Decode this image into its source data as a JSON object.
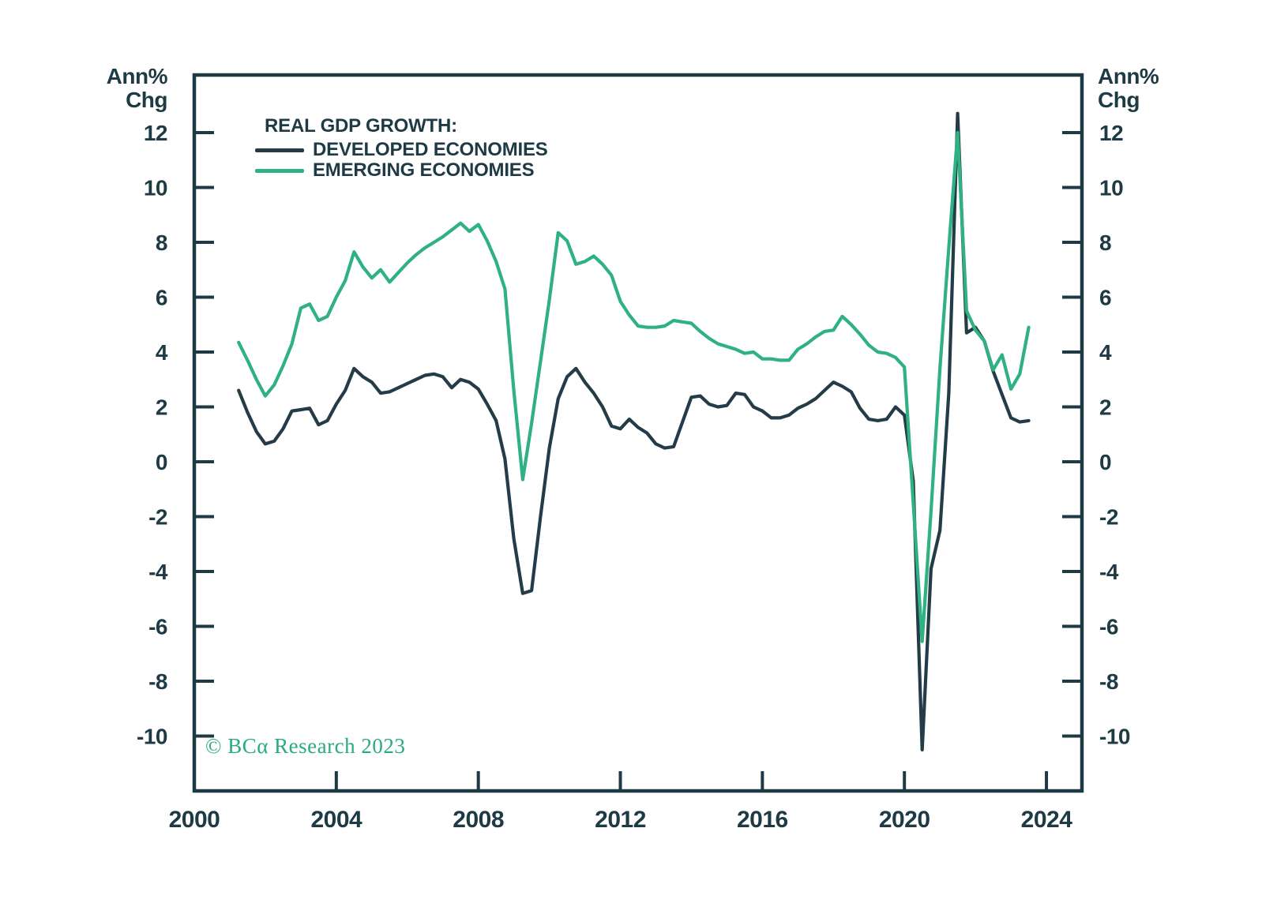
{
  "axis_units": {
    "line1": "Ann%",
    "line2": "Chg"
  },
  "legend": {
    "title": "REAL GDP GROWTH:",
    "items": [
      {
        "label": "DEVELOPED ECONOMIES",
        "color": "#243c48"
      },
      {
        "label": "EMERGING ECONOMIES",
        "color": "#2fb183"
      }
    ]
  },
  "copyright": "© BCα Research 2023",
  "colors": {
    "axis": "#1d3a45",
    "tick_label": "#1d3a45",
    "developed": "#243c48",
    "emerging": "#2fb183",
    "copyright_green": "#2aab7d",
    "background": "#ffffff"
  },
  "chart_data": {
    "type": "line",
    "title": "REAL GDP GROWTH:",
    "xlabel": "",
    "ylabel": "Ann% Chg",
    "grid": false,
    "legend_position": "top-left",
    "x_axis": {
      "range": [
        2000,
        2025
      ],
      "tick_values": [
        2000,
        2004,
        2008,
        2012,
        2016,
        2020,
        2024
      ],
      "tick_labels": [
        "2000",
        "2004",
        "2008",
        "2012",
        "2016",
        "2020",
        "2024"
      ]
    },
    "y_axis": {
      "range": [
        -12,
        14.1
      ],
      "tick_values": [
        12,
        10,
        8,
        6,
        4,
        2,
        0,
        -2,
        -4,
        -6,
        -8,
        -10
      ],
      "unit": "Ann% Chg",
      "sides": "both"
    },
    "x": [
      2001.25,
      2001.5,
      2001.75,
      2002.0,
      2002.25,
      2002.5,
      2002.75,
      2003.0,
      2003.25,
      2003.5,
      2003.75,
      2004.0,
      2004.25,
      2004.5,
      2004.75,
      2005.0,
      2005.25,
      2005.5,
      2005.75,
      2006.0,
      2006.25,
      2006.5,
      2006.75,
      2007.0,
      2007.25,
      2007.5,
      2007.75,
      2008.0,
      2008.25,
      2008.5,
      2008.75,
      2009.0,
      2009.25,
      2009.5,
      2009.75,
      2010.0,
      2010.25,
      2010.5,
      2010.75,
      2011.0,
      2011.25,
      2011.5,
      2011.75,
      2012.0,
      2012.25,
      2012.5,
      2012.75,
      2013.0,
      2013.25,
      2013.5,
      2013.75,
      2014.0,
      2014.25,
      2014.5,
      2014.75,
      2015.0,
      2015.25,
      2015.5,
      2015.75,
      2016.0,
      2016.25,
      2016.5,
      2016.75,
      2017.0,
      2017.25,
      2017.5,
      2017.75,
      2018.0,
      2018.25,
      2018.5,
      2018.75,
      2019.0,
      2019.25,
      2019.5,
      2019.75,
      2020.0,
      2020.25,
      2020.5,
      2020.75,
      2021.0,
      2021.25,
      2021.5,
      2021.75,
      2022.0,
      2022.25,
      2022.5,
      2022.75,
      2023.0,
      2023.25,
      2023.5
    ],
    "series": [
      {
        "name": "DEVELOPED ECONOMIES",
        "color": "#243c48",
        "values": [
          2.6,
          1.8,
          1.1,
          0.65,
          0.75,
          1.2,
          1.85,
          1.9,
          1.95,
          1.35,
          1.5,
          2.1,
          2.6,
          3.4,
          3.1,
          2.9,
          2.5,
          2.55,
          2.7,
          2.85,
          3.0,
          3.15,
          3.2,
          3.1,
          2.7,
          3.0,
          2.9,
          2.65,
          2.1,
          1.5,
          0.1,
          -2.8,
          -4.8,
          -4.7,
          -2.0,
          0.5,
          2.3,
          3.1,
          3.4,
          2.9,
          2.5,
          2.0,
          1.3,
          1.2,
          1.55,
          1.25,
          1.05,
          0.65,
          0.5,
          0.55,
          1.45,
          2.35,
          2.4,
          2.1,
          2.0,
          2.05,
          2.5,
          2.45,
          2.0,
          1.85,
          1.6,
          1.6,
          1.7,
          1.95,
          2.1,
          2.3,
          2.6,
          2.9,
          2.75,
          2.55,
          1.95,
          1.55,
          1.5,
          1.55,
          2.0,
          1.7,
          -0.7,
          -10.5,
          -3.9,
          -2.5,
          2.5,
          12.7,
          4.7,
          4.9,
          4.4,
          3.3,
          2.45,
          1.6,
          1.45,
          1.5
        ]
      },
      {
        "name": "EMERGING ECONOMIES",
        "color": "#2fb183",
        "values": [
          4.35,
          3.7,
          3.0,
          2.4,
          2.8,
          3.5,
          4.3,
          5.6,
          5.75,
          5.15,
          5.3,
          6.0,
          6.6,
          7.65,
          7.1,
          6.7,
          7.0,
          6.55,
          6.9,
          7.25,
          7.55,
          7.8,
          8.0,
          8.2,
          8.45,
          8.7,
          8.4,
          8.65,
          8.05,
          7.3,
          6.3,
          2.6,
          -0.65,
          1.4,
          3.65,
          5.9,
          8.35,
          8.05,
          7.2,
          7.3,
          7.5,
          7.2,
          6.8,
          5.85,
          5.35,
          4.95,
          4.9,
          4.9,
          4.95,
          5.15,
          5.1,
          5.05,
          4.75,
          4.5,
          4.3,
          4.2,
          4.1,
          3.95,
          4.0,
          3.75,
          3.75,
          3.7,
          3.7,
          4.1,
          4.3,
          4.55,
          4.75,
          4.8,
          5.3,
          5.0,
          4.65,
          4.25,
          4.0,
          3.95,
          3.8,
          3.45,
          -1.5,
          -6.55,
          -1.8,
          3.4,
          7.8,
          12.0,
          5.5,
          4.8,
          4.4,
          3.35,
          3.9,
          2.65,
          3.2,
          4.9
        ]
      }
    ]
  }
}
